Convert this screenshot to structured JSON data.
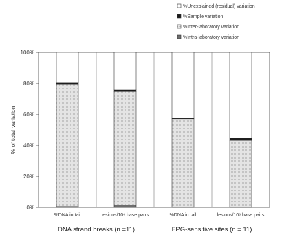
{
  "chart_data": {
    "type": "bar",
    "stacked": true,
    "ylabel": "% of total variation",
    "ylim": [
      0,
      100
    ],
    "yticks": [
      "0%",
      "20%",
      "40%",
      "60%",
      "80%",
      "100%"
    ],
    "categories": [
      "%DNA in tail",
      "lesions/10⁶ base pairs",
      "%DNA in tail",
      "lesions/10⁶ base pairs"
    ],
    "groups": [
      {
        "label": "DNA strand breaks (n =11)",
        "categories": [
          0,
          1
        ]
      },
      {
        "label": "FPG-sensitive sites (n = 11)",
        "categories": [
          2,
          3
        ]
      }
    ],
    "series": [
      {
        "name": "%Intra-laboratory variation",
        "values": [
          0.5,
          1.5,
          0,
          0
        ],
        "color": "#6e6e6e"
      },
      {
        "name": "%Inter-laboratory variation",
        "values": [
          79,
          73.5,
          57,
          43.5
        ],
        "color": "#d9d9d9"
      },
      {
        "name": "%Sample variation",
        "values": [
          1,
          1,
          0.5,
          1
        ],
        "color": "#1a1a1a"
      },
      {
        "name": "%Unexplained (residual) variation",
        "values": [
          19.5,
          24,
          42.5,
          55.5
        ],
        "color": "#ffffff"
      }
    ],
    "legend_order": [
      3,
      2,
      1,
      0
    ],
    "legend_position": "top-right",
    "grid": false
  }
}
